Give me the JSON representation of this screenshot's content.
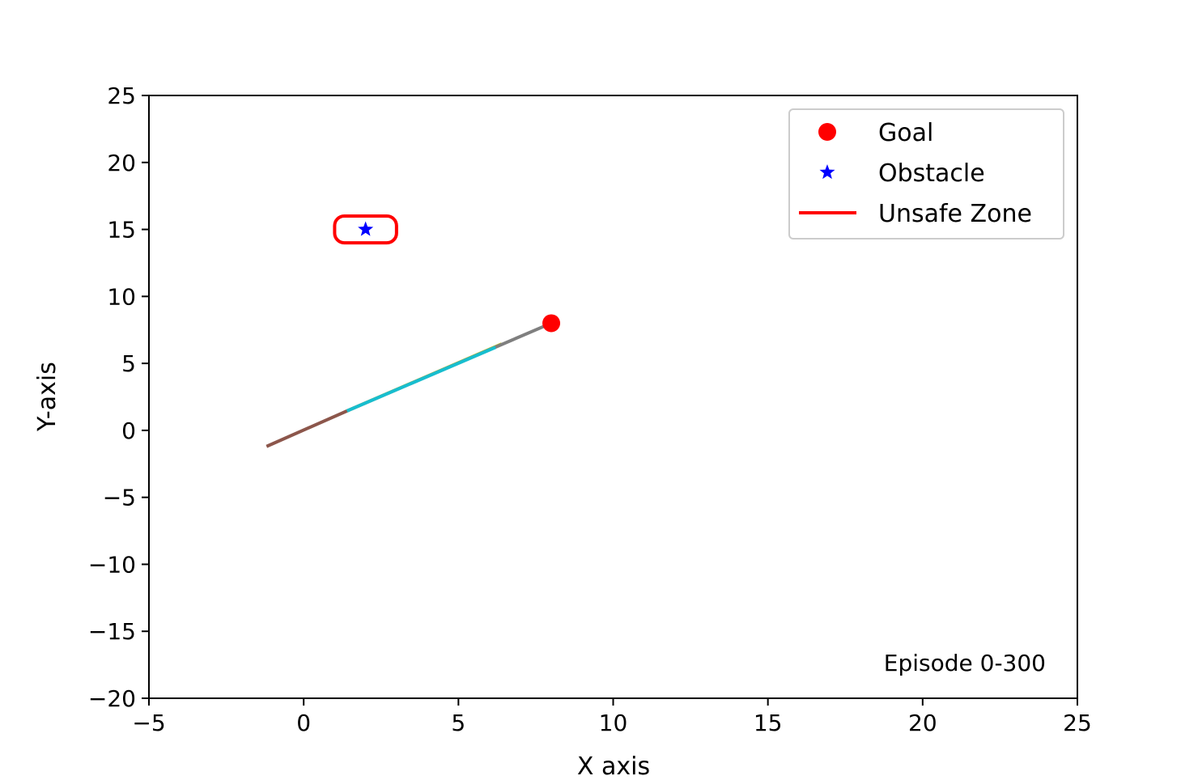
{
  "chart_data": {
    "type": "line",
    "title": "",
    "xlabel": "X axis",
    "ylabel": "Y-axis",
    "xlim": [
      -5,
      25
    ],
    "ylim": [
      -20,
      25
    ],
    "xticks": [
      -5,
      0,
      5,
      10,
      15,
      20,
      25
    ],
    "yticks": [
      -20,
      -15,
      -10,
      -5,
      0,
      5,
      10,
      15,
      20,
      25
    ],
    "xtick_labels": [
      "−5",
      "0",
      "5",
      "10",
      "15",
      "20",
      "25"
    ],
    "ytick_labels": [
      "−20",
      "−15",
      "−10",
      "−5",
      "0",
      "5",
      "10",
      "15",
      "20",
      "25"
    ],
    "grid": false,
    "legend": {
      "placement": "top-right",
      "entries": [
        {
          "label": "Goal",
          "marker": "circle",
          "color": "#ff0000"
        },
        {
          "label": "Obstacle",
          "marker": "star",
          "color": "#0000ff"
        },
        {
          "label": "Unsafe Zone",
          "marker": "line",
          "color": "#ff0000"
        }
      ]
    },
    "goal": {
      "x": 8,
      "y": 8,
      "color": "#ff0000"
    },
    "obstacle": {
      "x": 2,
      "y": 15,
      "color": "#0000ff"
    },
    "unsafe_zone": {
      "x_min": 1,
      "x_max": 3,
      "y_min": 14,
      "y_max": 16,
      "color": "#ff0000"
    },
    "series": [
      {
        "color": "#8c564b",
        "x": [
          -1.2,
          1.4
        ],
        "y": [
          -1.2,
          1.45
        ]
      },
      {
        "color": "#bcbd22",
        "x": [
          1.4,
          6.4
        ],
        "y": [
          1.45,
          6.45
        ]
      },
      {
        "color": "#7f7f7f",
        "x": [
          1.4,
          8.0
        ],
        "y": [
          1.45,
          8.0
        ]
      },
      {
        "color": "#17becf",
        "x": [
          1.4,
          6.2
        ],
        "y": [
          1.45,
          6.2
        ]
      }
    ],
    "annotation": "Episode 0-300"
  }
}
